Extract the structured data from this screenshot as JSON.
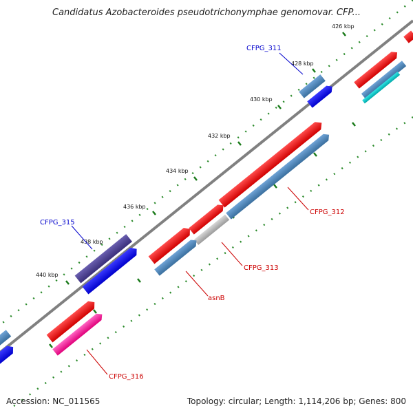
{
  "title": "Candidatus Azobacteroides pseudotrichonymphae genomovar. CFP...",
  "footer": {
    "accession": "Accession: NC_011565",
    "summary": "Topology: circular; Length: 1,114,206 bp; Genes: 800"
  },
  "ticks": [
    "426 kbp",
    "428 kbp",
    "430 kbp",
    "432 kbp",
    "434 kbp",
    "436 kbp",
    "438 kbp",
    "440 kbp"
  ],
  "gene_labels": {
    "cfpg311": "CFPG_311",
    "cfpg312": "CFPG_312",
    "cfpg313": "CFPG_313",
    "asnB": "asnB",
    "cfpg315": "CFPG_315",
    "cfpg316": "CFPG_316"
  },
  "colors": {
    "backbone": "#808080",
    "forward_cds": "#e8000b",
    "forward_gene": "#4682b4",
    "reverse_cds": "#0000ff",
    "reverse_gene": "#483d8b",
    "pseudo": "#b0b0b0",
    "rna": "#ff3399",
    "other": "#00cccc",
    "label_forward": "#cc0000",
    "label_reverse": "#0000cc",
    "tick_dot": "#2a8a2a"
  }
}
